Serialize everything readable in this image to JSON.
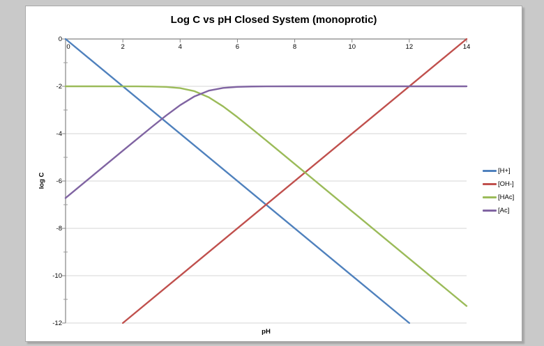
{
  "window": {
    "background_color": "#c9c9c9",
    "card_background": "#ffffff",
    "card_border_color": "#a8a8a8"
  },
  "chart_data": {
    "type": "line",
    "title": "Log C vs pH Closed System (monoprotic)",
    "xlabel": "pH",
    "ylabel": "log C",
    "xlim": [
      0,
      14
    ],
    "ylim": [
      -12,
      0
    ],
    "x_ticks": [
      0,
      2,
      4,
      6,
      8,
      10,
      12,
      14
    ],
    "y_ticks": [
      0,
      -2,
      -4,
      -6,
      -8,
      -10,
      -12
    ],
    "grid": "horizontal-only",
    "gridline_color": "#d6d6d6",
    "axis_color": "#848484",
    "legend_position": "right",
    "series": [
      {
        "name": "[H+]",
        "color": "#4F81BD",
        "points": [
          [
            0,
            0
          ],
          [
            12,
            -12
          ]
        ]
      },
      {
        "name": "[OH-]",
        "color": "#C0504D",
        "points": [
          [
            2,
            -12
          ],
          [
            14,
            0
          ]
        ]
      },
      {
        "name": "[HAc]",
        "color": "#9BBB59",
        "points": [
          [
            0,
            -2.0
          ],
          [
            1,
            -2.0
          ],
          [
            2,
            -2.001
          ],
          [
            2.5,
            -2.003
          ],
          [
            3,
            -2.008
          ],
          [
            3.5,
            -2.025
          ],
          [
            4,
            -2.076
          ],
          [
            4.5,
            -2.205
          ],
          [
            5,
            -2.463
          ],
          [
            5.5,
            -2.847
          ],
          [
            6,
            -3.302
          ],
          [
            6.5,
            -3.787
          ],
          [
            7,
            -4.282
          ],
          [
            7.5,
            -4.781
          ],
          [
            8,
            -5.281
          ],
          [
            9,
            -6.28
          ],
          [
            10,
            -7.28
          ],
          [
            11,
            -8.28
          ],
          [
            12,
            -9.28
          ],
          [
            13,
            -10.28
          ],
          [
            14,
            -11.28
          ]
        ]
      },
      {
        "name": "[Ac]",
        "color": "#8064A2",
        "points": [
          [
            0,
            -6.72
          ],
          [
            0.5,
            -6.22
          ],
          [
            1,
            -5.72
          ],
          [
            1.5,
            -5.22
          ],
          [
            2,
            -4.72
          ],
          [
            2.5,
            -4.223
          ],
          [
            3,
            -3.728
          ],
          [
            3.5,
            -3.245
          ],
          [
            4,
            -2.796
          ],
          [
            4.5,
            -2.425
          ],
          [
            5,
            -2.183
          ],
          [
            5.5,
            -2.067
          ],
          [
            6,
            -2.022
          ],
          [
            6.5,
            -2.007
          ],
          [
            7,
            -2.002
          ],
          [
            8,
            -2.0
          ],
          [
            10,
            -2.0
          ],
          [
            14,
            -2.0
          ]
        ]
      }
    ]
  }
}
